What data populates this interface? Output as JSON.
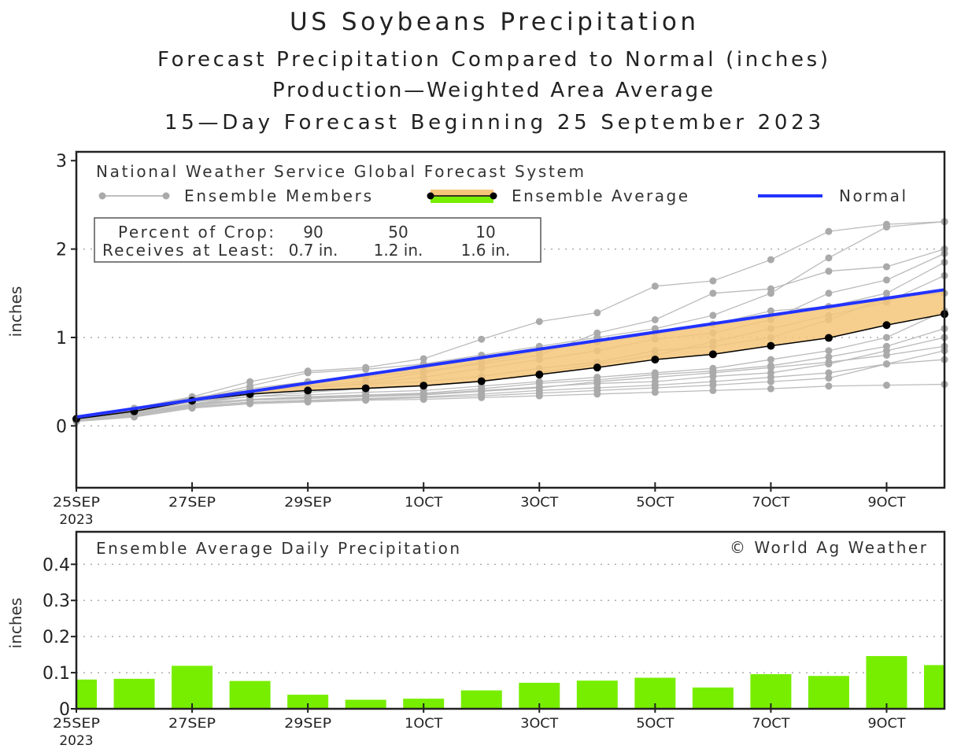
{
  "title": "US Soybeans Precipitation",
  "subtitles": [
    "Forecast Precipitation Compared to Normal (inches)",
    "Production—Weighted Area Average",
    "15—Day Forecast Beginning 25 September 2023"
  ],
  "colors": {
    "normal": "#2233ff",
    "band": "#f5c57a",
    "bars": "#77ee00",
    "members": "#aaaaaa",
    "average": "#000000"
  },
  "chart_data": [
    {
      "type": "line",
      "title": "National Weather Service Global Forecast System",
      "ylabel": "inches",
      "ylim": [
        -0.7,
        3.1
      ],
      "yticks": [
        "0",
        "1",
        "2",
        "3"
      ],
      "xlim": [
        0,
        15
      ],
      "xticks": [
        {
          "day": 0,
          "label": "25SEP",
          "label2": "2023"
        },
        {
          "day": 2,
          "label": "27SEP"
        },
        {
          "day": 4,
          "label": "29SEP"
        },
        {
          "day": 6,
          "label": "1OCT"
        },
        {
          "day": 8,
          "label": "3OCT"
        },
        {
          "day": 10,
          "label": "5OCT"
        },
        {
          "day": 12,
          "label": "7OCT"
        },
        {
          "day": 14,
          "label": "9OCT"
        }
      ],
      "legend": {
        "members": "Ensemble Members",
        "average": "Ensemble Average",
        "normal": "Normal"
      },
      "crop_table": {
        "row1_label": "Percent of Crop:",
        "row2_label": "Receives at Least:",
        "percents": [
          "90",
          "50",
          "10"
        ],
        "amounts": [
          "0.7 in.",
          "1.2 in.",
          "1.6 in."
        ]
      },
      "ensemble_average": [
        0.08,
        0.165,
        0.285,
        0.36,
        0.4,
        0.425,
        0.455,
        0.505,
        0.58,
        0.66,
        0.75,
        0.81,
        0.905,
        0.995,
        1.14,
        1.265
      ],
      "normal": [
        0.1,
        0.196,
        0.292,
        0.388,
        0.484,
        0.58,
        0.676,
        0.772,
        0.868,
        0.964,
        1.06,
        1.156,
        1.252,
        1.348,
        1.444,
        1.54
      ],
      "ensemble_members": [
        [
          0.08,
          0.2,
          0.33,
          0.5,
          0.62,
          0.66,
          0.76,
          0.98,
          1.18,
          1.28,
          1.58,
          1.64,
          1.88,
          2.2,
          2.28,
          2.31
        ],
        [
          0.07,
          0.18,
          0.3,
          0.45,
          0.6,
          0.64,
          0.7,
          0.8,
          0.9,
          1.0,
          1.1,
          1.25,
          1.5,
          1.9,
          2.25,
          2.31
        ],
        [
          0.07,
          0.17,
          0.3,
          0.42,
          0.5,
          0.55,
          0.62,
          0.7,
          0.8,
          1.05,
          1.2,
          1.5,
          1.55,
          1.75,
          1.8,
          2.0
        ],
        [
          0.06,
          0.15,
          0.27,
          0.35,
          0.42,
          0.48,
          0.55,
          0.65,
          0.75,
          0.85,
          0.98,
          1.05,
          1.2,
          1.5,
          1.65,
          1.95
        ],
        [
          0.07,
          0.16,
          0.28,
          0.38,
          0.45,
          0.5,
          0.6,
          0.72,
          0.85,
          0.95,
          1.05,
          1.15,
          1.3,
          1.35,
          1.5,
          1.85
        ],
        [
          0.06,
          0.14,
          0.25,
          0.33,
          0.38,
          0.42,
          0.45,
          0.5,
          0.6,
          0.7,
          0.8,
          0.95,
          1.1,
          1.25,
          1.4,
          1.7
        ],
        [
          0.08,
          0.18,
          0.32,
          0.4,
          0.44,
          0.47,
          0.5,
          0.56,
          0.65,
          0.72,
          0.85,
          0.9,
          1.0,
          1.2,
          1.45,
          1.5
        ],
        [
          0.07,
          0.15,
          0.27,
          0.33,
          0.35,
          0.38,
          0.4,
          0.45,
          0.5,
          0.55,
          0.6,
          0.65,
          0.75,
          0.85,
          1.0,
          1.3
        ],
        [
          0.06,
          0.14,
          0.25,
          0.3,
          0.33,
          0.35,
          0.37,
          0.42,
          0.48,
          0.52,
          0.58,
          0.62,
          0.68,
          0.78,
          0.9,
          1.1
        ],
        [
          0.06,
          0.13,
          0.24,
          0.3,
          0.32,
          0.34,
          0.36,
          0.4,
          0.44,
          0.48,
          0.5,
          0.56,
          0.6,
          0.7,
          0.85,
          1.0
        ],
        [
          0.06,
          0.12,
          0.23,
          0.29,
          0.31,
          0.33,
          0.35,
          0.39,
          0.43,
          0.5,
          0.55,
          0.6,
          0.66,
          0.72,
          0.8,
          0.9
        ],
        [
          0.05,
          0.12,
          0.22,
          0.27,
          0.29,
          0.31,
          0.33,
          0.36,
          0.4,
          0.43,
          0.46,
          0.5,
          0.55,
          0.6,
          0.7,
          0.85
        ],
        [
          0.05,
          0.11,
          0.21,
          0.26,
          0.28,
          0.3,
          0.32,
          0.34,
          0.37,
          0.4,
          0.43,
          0.46,
          0.5,
          0.54,
          0.7,
          0.75
        ],
        [
          0.05,
          0.1,
          0.2,
          0.25,
          0.27,
          0.29,
          0.3,
          0.32,
          0.34,
          0.36,
          0.38,
          0.4,
          0.42,
          0.45,
          0.46,
          0.47
        ]
      ]
    },
    {
      "type": "bar",
      "title": "Ensemble Average Daily Precipitation",
      "annotation": "© World Ag Weather",
      "ylabel": "inches",
      "ylim": [
        0,
        0.49
      ],
      "yticks": [
        "0",
        "0.1",
        "0.2",
        "0.3",
        "0.4"
      ],
      "xlim": [
        0,
        15
      ],
      "values": [
        0.081,
        0.083,
        0.119,
        0.077,
        0.039,
        0.025,
        0.028,
        0.051,
        0.072,
        0.078,
        0.086,
        0.059,
        0.096,
        0.091,
        0.146,
        0.121
      ]
    }
  ]
}
